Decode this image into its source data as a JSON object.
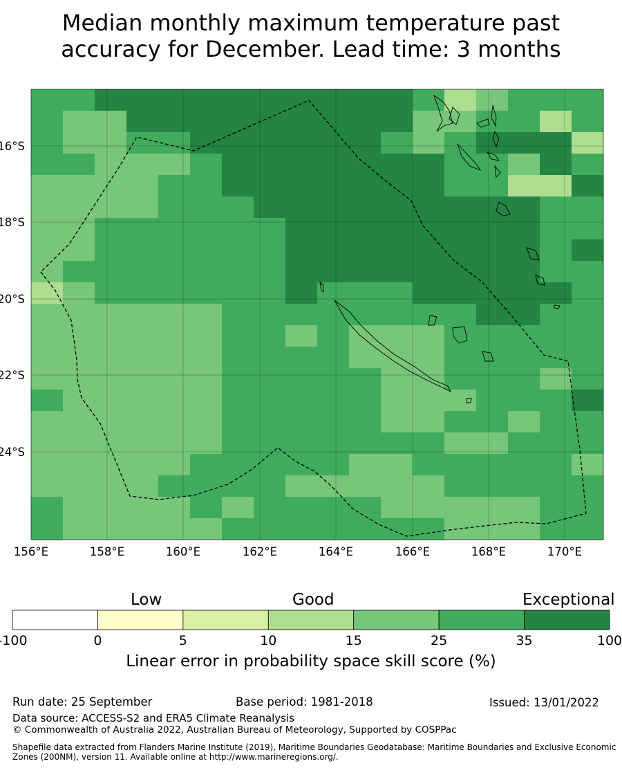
{
  "title_line1": "Median monthly maximum temperature past",
  "title_line2": "accuracy for December. Lead time: 3 months",
  "map": {
    "lon_ticks": [
      "156°E",
      "158°E",
      "160°E",
      "162°E",
      "164°E",
      "166°E",
      "168°E",
      "170°E"
    ],
    "lat_ticks": [
      "16°S",
      "18°S",
      "20°S",
      "22°S",
      "24°S"
    ]
  },
  "colorbar": {
    "categories": [
      "Low",
      "Good",
      "Exceptional"
    ],
    "boundaries": [
      "-100",
      "0",
      "5",
      "10",
      "15",
      "25",
      "35",
      "100"
    ],
    "colors": [
      "#ffffff",
      "#ffffcc",
      "#d9f0a3",
      "#addd8e",
      "#78c679",
      "#41ab5d",
      "#238443"
    ],
    "label": "Linear error in probability space skill score (%)"
  },
  "footer": {
    "run_date": "Run date: 25 September",
    "base_period": "Base period: 1981-2018",
    "issued": "Issued: 13/01/2022",
    "data_source": "Data source: ACCESS-S2 and ERA5 Climate Reanalysis",
    "copyright": "© Commonwealth of Australia 2022, Australian Bureau of Meteorology, Supported by COSPPac",
    "shapefile_line1": "Shapefile data extracted from Flanders Marine Institute (2019), Maritime Boundaries Geodatabase: Maritime Boundaries and Exclusive Economic",
    "shapefile_line2": "Zones (200NM), version 11. Available online at http://www.marineregions.org/."
  }
}
